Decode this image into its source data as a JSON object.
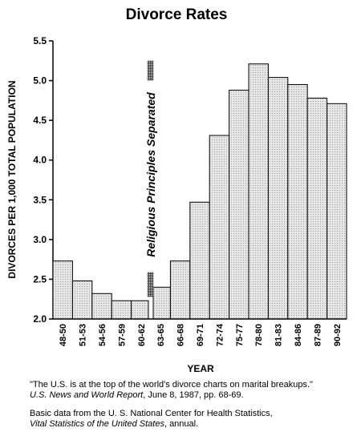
{
  "chart_data": {
    "type": "bar",
    "title": "Divorce Rates",
    "ylabel": "DIVORCES PER 1,000 TOTAL POPULATION",
    "xlabel": "YEAR",
    "ylim": [
      2.0,
      5.5
    ],
    "yticks": [
      "2.0",
      "2.5",
      "3.0",
      "3.5",
      "4.0",
      "4.5",
      "5.0",
      "5.5"
    ],
    "categories": [
      "48-50",
      "51-53",
      "54-56",
      "57-59",
      "60-62",
      "63-65",
      "66-68",
      "69-71",
      "72-74",
      "75-77",
      "78-80",
      "81-83",
      "84-86",
      "87-89",
      "90-92"
    ],
    "values": [
      2.73,
      2.48,
      2.32,
      2.23,
      2.23,
      2.4,
      2.73,
      3.47,
      4.31,
      4.88,
      5.21,
      5.04,
      4.95,
      4.78,
      4.71
    ],
    "annotation": {
      "text": "Religious Principles Separated",
      "between": [
        "60-62",
        "63-65"
      ]
    },
    "grid": false,
    "colors": {
      "bar_fill": "#e2e2e2",
      "bar_stroke": "#000000",
      "marker": "#333333"
    }
  },
  "notes": {
    "quote": "\"The U.S. is at the top of the world's divorce charts on marital breakups.\"",
    "quote_source": "U.S. News and World Report",
    "quote_rest": ", June 8, 1987, pp. 68-69.",
    "basic_line1": "Basic data from the U. S. National Center for Health Statistics,",
    "basic_source": "Vital Statistics of the United States",
    "basic_rest": ", annual."
  }
}
